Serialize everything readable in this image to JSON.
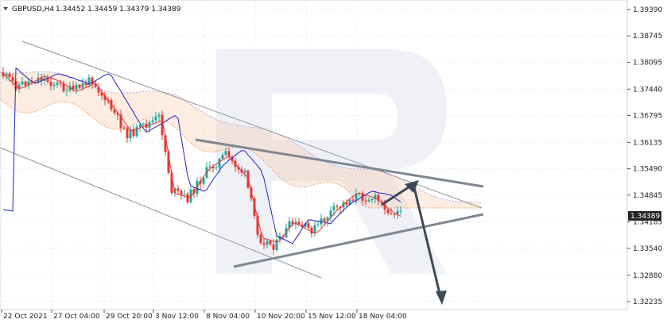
{
  "header": {
    "symbol": "GBPUSD,H4",
    "ohlc": "1.34452 1.34459 1.34379 1.34389"
  },
  "chart_data": {
    "type": "candlestick",
    "title": "GBPUSD,H4 1.34452 1.34459 1.34379 1.34389",
    "y_ticks": [
      "1.39390",
      "1.38745",
      "1.38095",
      "1.37440",
      "1.36795",
      "1.36135",
      "1.35490",
      "1.34845",
      "1.34185",
      "1.33540",
      "1.32880",
      "1.32235"
    ],
    "ylim": [
      1.32235,
      1.3939
    ],
    "x_ticks": [
      "22 Oct 2021",
      "27 Oct 04:00",
      "29 Oct 20:00",
      "3 Nov 12:00",
      "8 Nov 04:00",
      "10 Nov 20:00",
      "15 Nov 12:00",
      "18 Nov 04:00"
    ],
    "current_price": "1.34389",
    "grid": true,
    "colors": {
      "bull": "#26a69a",
      "bear": "#e53935",
      "tenkan": "#e53935",
      "kijun": "#1e22c8",
      "cloud_a": "#f0a060",
      "cloud_b": "#b7a6e6",
      "trendline": "#7f8791",
      "arrow": "#3f4a57",
      "price_label_bg": "#262626"
    }
  }
}
